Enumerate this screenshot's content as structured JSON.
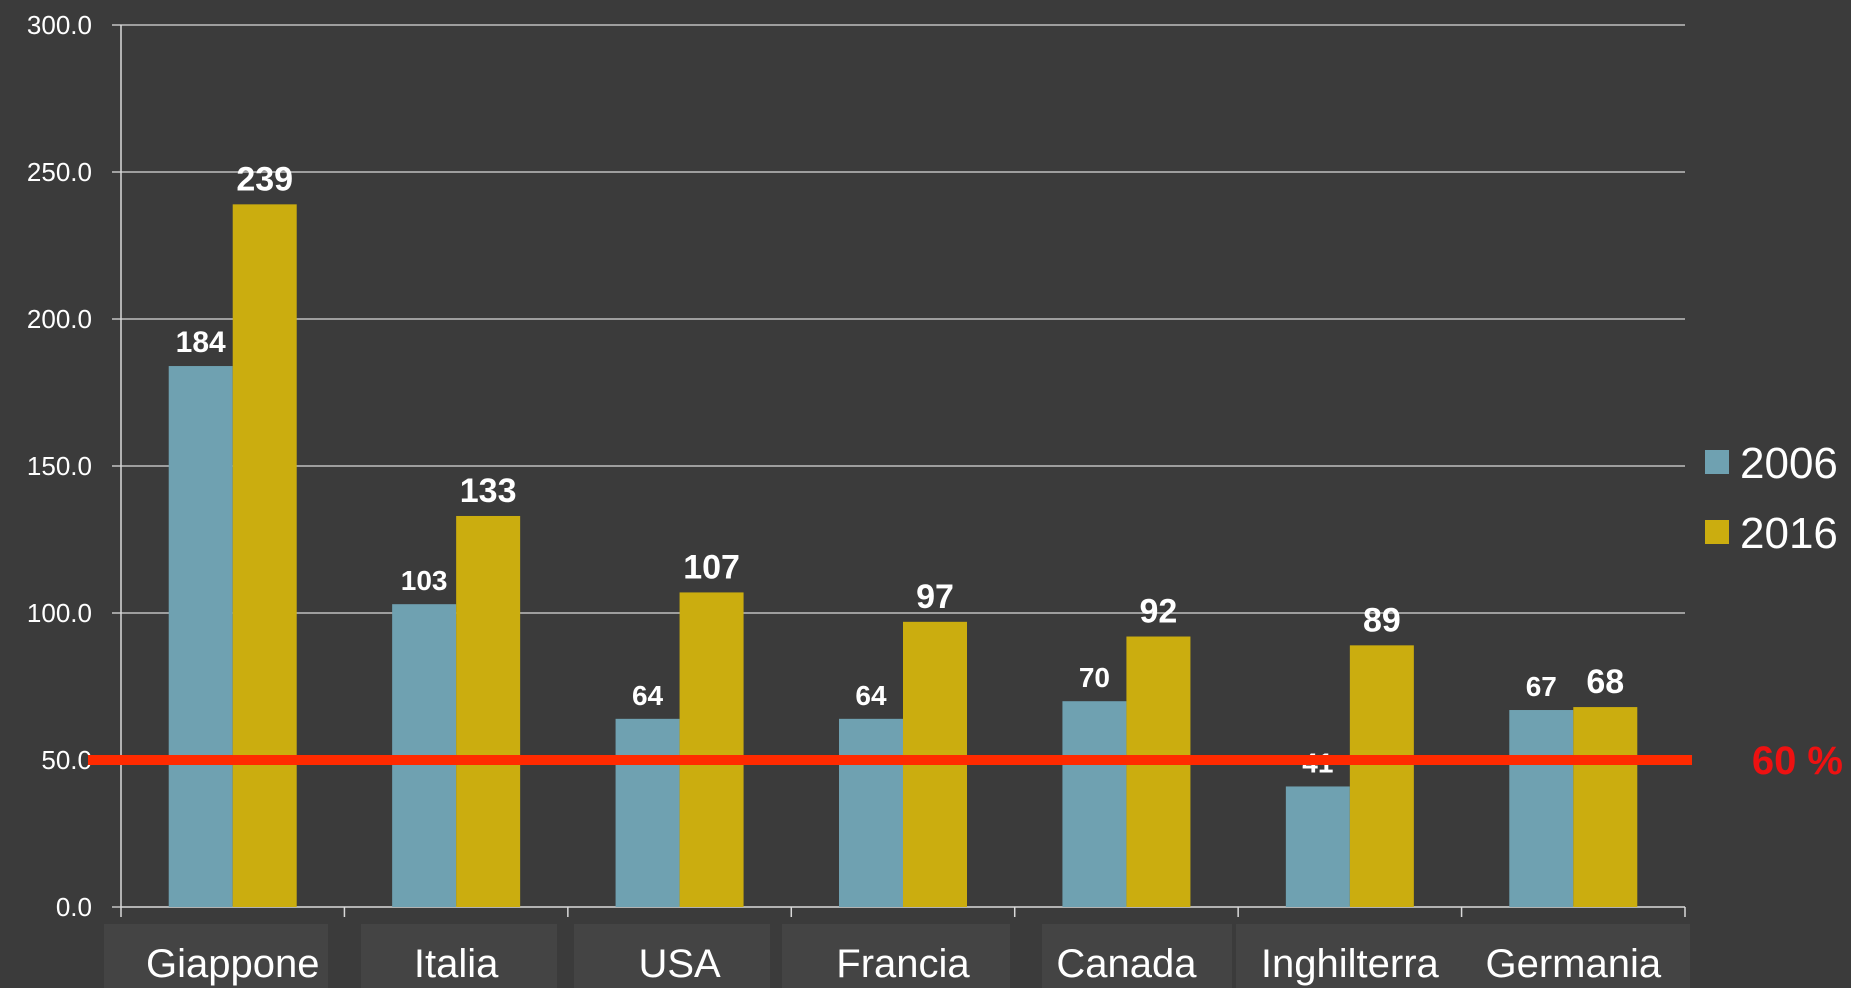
{
  "chart_data": {
    "type": "bar",
    "title": "",
    "xlabel": "",
    "ylabel": "",
    "categories": [
      "Giappone",
      "Italia",
      "USA",
      "Francia",
      "Canada",
      "Inghilterra",
      "Germania"
    ],
    "series": [
      {
        "name": "2006",
        "color": "#6fa1b1",
        "values": [
          184,
          103,
          64,
          64,
          70,
          41,
          67
        ]
      },
      {
        "name": "2016",
        "color": "#cbad0f",
        "values": [
          239,
          133,
          107,
          97,
          92,
          89,
          68
        ]
      }
    ],
    "ylim": [
      0,
      300
    ],
    "yticks": [
      0,
      50,
      100,
      150,
      200,
      250,
      300
    ],
    "ytick_labels": [
      "0.0",
      "50.0",
      "100.0",
      "150.0",
      "200.0",
      "250.0",
      "300.0"
    ],
    "grid": true,
    "legend_position": "right",
    "reference_line": {
      "value": 50,
      "label": "60 %",
      "color": "#ff2a00",
      "label_color": "#ee1111"
    },
    "colors": {
      "background": "#3b3b3b",
      "grid": "#d9d9d9",
      "text": "#ffffff",
      "category_box": "#444444"
    }
  }
}
